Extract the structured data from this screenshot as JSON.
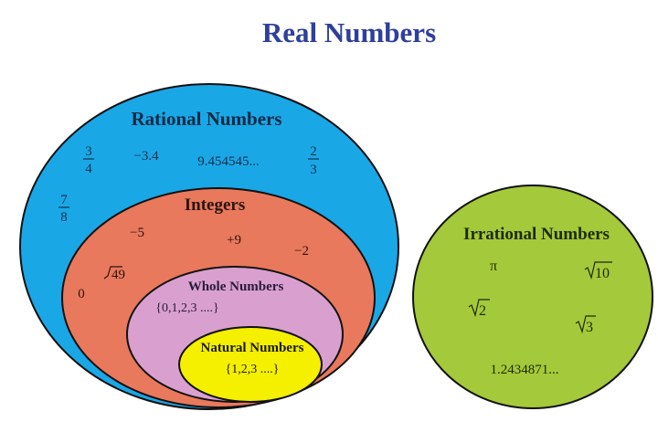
{
  "title": "Real Numbers",
  "colors": {
    "title": "#2e3f9c",
    "rational": "#1aa7e6",
    "integers": "#e9795c",
    "whole": "#d9a0cf",
    "natural": "#f5ef00",
    "irrational": "#a4c93a"
  },
  "rational": {
    "label": "Rational Numbers",
    "examples": {
      "frac1_num": "3",
      "frac1_den": "4",
      "neg": "−3.4",
      "repeating": "9.454545...",
      "frac2_num": "2",
      "frac2_den": "3",
      "frac3_num": "7",
      "frac3_den": "8"
    }
  },
  "integers": {
    "label": "Integers",
    "examples": {
      "a": "−5",
      "b": "+9",
      "c": "−2",
      "d": "0",
      "sqrt": "49"
    }
  },
  "whole": {
    "label": "Whole Numbers",
    "set": "{0,1,2,3 ....}"
  },
  "natural": {
    "label": "Natural Numbers",
    "set": "{1,2,3 ....}"
  },
  "irrational": {
    "label": "Irrational Numbers",
    "examples": {
      "pi": "π",
      "sqrt10": "10",
      "sqrt2": "2",
      "sqrt3": "3",
      "decimal": "1.2434871..."
    }
  }
}
